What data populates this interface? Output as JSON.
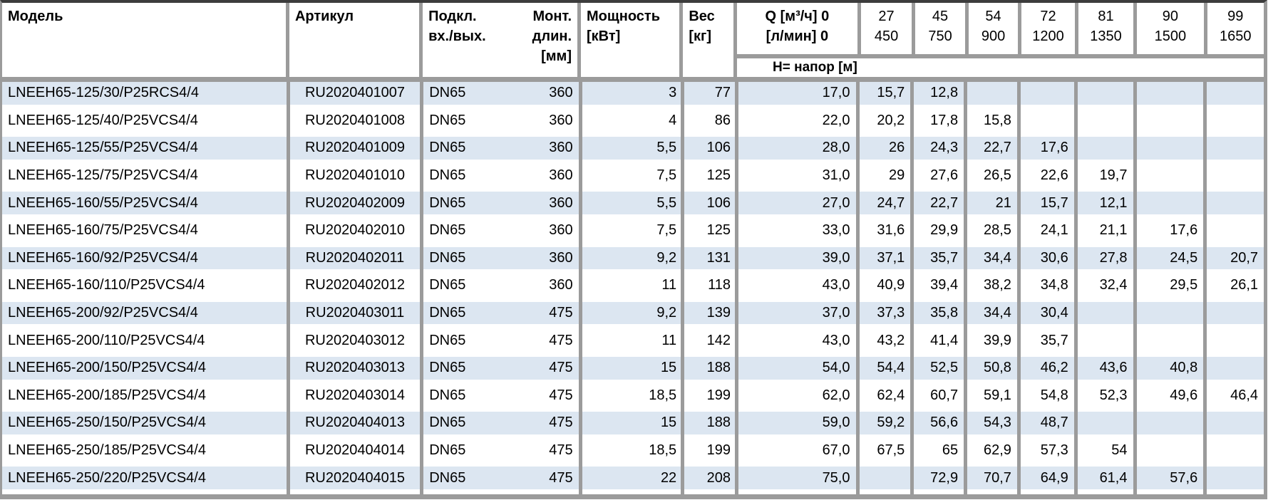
{
  "colors": {
    "row_stripe_blue": "#dce6f1",
    "grid_gray": "#9b9b9b",
    "top_rule_dark": "#3c3c3c",
    "text": "#000000"
  },
  "table": {
    "header": {
      "model": "Модель",
      "article": "Артикул",
      "connection_line1": "Подкл.",
      "connection_line2": "вх./вых.",
      "mount_line1": "Монт.",
      "mount_line2": "длин.",
      "mount_unit": "[мм]",
      "power_line1": "Мощность",
      "power_unit": "[кВт]",
      "weight_line1": "Вес",
      "weight_unit": "[кг]",
      "q_line1": "Q [м³/ч] 0",
      "q_line2": "[л/мин] 0",
      "head_row_label": "Н= напор [м]"
    },
    "flow_headers": [
      {
        "m3h": "27",
        "lmin": "450"
      },
      {
        "m3h": "45",
        "lmin": "750"
      },
      {
        "m3h": "54",
        "lmin": "900"
      },
      {
        "m3h": "72",
        "lmin": "1200"
      },
      {
        "m3h": "81",
        "lmin": "1350"
      },
      {
        "m3h": "90",
        "lmin": "1500"
      },
      {
        "m3h": "99",
        "lmin": "1650"
      }
    ],
    "rows": [
      {
        "model": "LNEEH65-125/30/P25RCS4/4",
        "article": "RU2020401007",
        "conn": "DN65",
        "mount": "360",
        "power": "3",
        "weight": "77",
        "q0": "17,0",
        "h27": "15,7",
        "h45": "12,8",
        "h54": "",
        "h72": "",
        "h81": "",
        "h90": "",
        "h99": ""
      },
      {
        "model": "LNEEH65-125/40/P25VCS4/4",
        "article": "RU2020401008",
        "conn": "DN65",
        "mount": "360",
        "power": "4",
        "weight": "86",
        "q0": "22,0",
        "h27": "20,2",
        "h45": "17,8",
        "h54": "15,8",
        "h72": "",
        "h81": "",
        "h90": "",
        "h99": ""
      },
      {
        "model": "LNEEH65-125/55/P25VCS4/4",
        "article": "RU2020401009",
        "conn": "DN65",
        "mount": "360",
        "power": "5,5",
        "weight": "106",
        "q0": "28,0",
        "h27": "26",
        "h45": "24,3",
        "h54": "22,7",
        "h72": "17,6",
        "h81": "",
        "h90": "",
        "h99": ""
      },
      {
        "model": "LNEEH65-125/75/P25VCS4/4",
        "article": "RU2020401010",
        "conn": "DN65",
        "mount": "360",
        "power": "7,5",
        "weight": "125",
        "q0": "31,0",
        "h27": "29",
        "h45": "27,6",
        "h54": "26,5",
        "h72": "22,6",
        "h81": "19,7",
        "h90": "",
        "h99": ""
      },
      {
        "model": "LNEEH65-160/55/P25VCS4/4",
        "article": "RU2020402009",
        "conn": "DN65",
        "mount": "360",
        "power": "5,5",
        "weight": "106",
        "q0": "27,0",
        "h27": "24,7",
        "h45": "22,7",
        "h54": "21",
        "h72": "15,7",
        "h81": "12,1",
        "h90": "",
        "h99": ""
      },
      {
        "model": "LNEEH65-160/75/P25VCS4/4",
        "article": "RU2020402010",
        "conn": "DN65",
        "mount": "360",
        "power": "7,5",
        "weight": "125",
        "q0": "33,0",
        "h27": "31,6",
        "h45": "29,9",
        "h54": "28,5",
        "h72": "24,1",
        "h81": "21,1",
        "h90": "17,6",
        "h99": ""
      },
      {
        "model": "LNEEH65-160/92/P25VCS4/4",
        "article": "RU2020402011",
        "conn": "DN65",
        "mount": "360",
        "power": "9,2",
        "weight": "131",
        "q0": "39,0",
        "h27": "37,1",
        "h45": "35,7",
        "h54": "34,4",
        "h72": "30,6",
        "h81": "27,8",
        "h90": "24,5",
        "h99": "20,7"
      },
      {
        "model": "LNEEH65-160/110/P25VCS4/4",
        "article": "RU2020402012",
        "conn": "DN65",
        "mount": "360",
        "power": "11",
        "weight": "118",
        "q0": "43,0",
        "h27": "40,9",
        "h45": "39,4",
        "h54": "38,2",
        "h72": "34,8",
        "h81": "32,4",
        "h90": "29,5",
        "h99": "26,1"
      },
      {
        "model": "LNEEH65-200/92/P25VCS4/4",
        "article": "RU2020403011",
        "conn": "DN65",
        "mount": "475",
        "power": "9,2",
        "weight": "139",
        "q0": "37,0",
        "h27": "37,3",
        "h45": "35,8",
        "h54": "34,4",
        "h72": "30,4",
        "h81": "",
        "h90": "",
        "h99": ""
      },
      {
        "model": "LNEEH65-200/110/P25VCS4/4",
        "article": "RU2020403012",
        "conn": "DN65",
        "mount": "475",
        "power": "11",
        "weight": "142",
        "q0": "43,0",
        "h27": "43,2",
        "h45": "41,4",
        "h54": "39,9",
        "h72": "35,7",
        "h81": "",
        "h90": "",
        "h99": ""
      },
      {
        "model": "LNEEH65-200/150/P25VCS4/4",
        "article": "RU2020403013",
        "conn": "DN65",
        "mount": "475",
        "power": "15",
        "weight": "188",
        "q0": "54,0",
        "h27": "54,4",
        "h45": "52,5",
        "h54": "50,8",
        "h72": "46,2",
        "h81": "43,6",
        "h90": "40,8",
        "h99": ""
      },
      {
        "model": "LNEEH65-200/185/P25VCS4/4",
        "article": "RU2020403014",
        "conn": "DN65",
        "mount": "475",
        "power": "18,5",
        "weight": "199",
        "q0": "62,0",
        "h27": "62,4",
        "h45": "60,7",
        "h54": "59,1",
        "h72": "54,8",
        "h81": "52,3",
        "h90": "49,6",
        "h99": "46,4"
      },
      {
        "model": "LNEEH65-250/150/P25VCS4/4",
        "article": "RU2020404013",
        "conn": "DN65",
        "mount": "475",
        "power": "15",
        "weight": "188",
        "q0": "59,0",
        "h27": "59,2",
        "h45": "56,6",
        "h54": "54,3",
        "h72": "48,7",
        "h81": "",
        "h90": "",
        "h99": ""
      },
      {
        "model": "LNEEH65-250/185/P25VCS4/4",
        "article": "RU2020404014",
        "conn": "DN65",
        "mount": "475",
        "power": "18,5",
        "weight": "199",
        "q0": "67,0",
        "h27": "67,5",
        "h45": "65",
        "h54": "62,9",
        "h72": "57,3",
        "h81": "54",
        "h90": "",
        "h99": ""
      },
      {
        "model": "LNEEH65-250/220/P25VCS4/4",
        "article": "RU2020404015",
        "conn": "DN65",
        "mount": "475",
        "power": "22",
        "weight": "208",
        "q0": "75,0",
        "h27": "",
        "h45": "72,9",
        "h54": "70,7",
        "h72": "64,9",
        "h81": "61,4",
        "h90": "57,6",
        "h99": ""
      }
    ]
  }
}
